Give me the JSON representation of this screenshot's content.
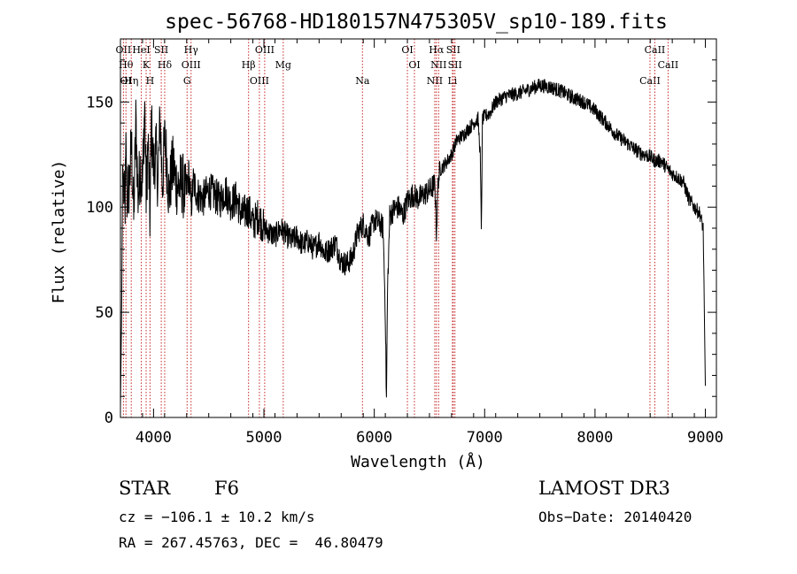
{
  "chart_data": {
    "type": "line",
    "title": "spec-56768-HD180157N475305V_sp10-189.fits",
    "xlabel": "Wavelength (Å)",
    "ylabel": "Flux (relative)",
    "xlim": [
      3700,
      9100
    ],
    "ylim": [
      0,
      180
    ],
    "xticks": [
      4000,
      5000,
      6000,
      7000,
      8000,
      9000
    ],
    "yticks": [
      0,
      50,
      100,
      150
    ],
    "grid": false,
    "series": [
      {
        "name": "flux",
        "x": [
          3700,
          3710,
          3720,
          3730,
          3740,
          3750,
          3760,
          3780,
          3800,
          3820,
          3840,
          3860,
          3880,
          3900,
          3920,
          3933,
          3950,
          3968,
          3980,
          4000,
          4020,
          4040,
          4060,
          4080,
          4101,
          4120,
          4140,
          4160,
          4180,
          4200,
          4230,
          4260,
          4290,
          4320,
          4340,
          4360,
          4400,
          4450,
          4500,
          4550,
          4600,
          4650,
          4700,
          4750,
          4800,
          4861,
          4900,
          4950,
          5000,
          5050,
          5100,
          5150,
          5200,
          5250,
          5300,
          5350,
          5400,
          5450,
          5500,
          5550,
          5600,
          5650,
          5700,
          5750,
          5800,
          5850,
          5900,
          5950,
          6000,
          6050,
          6080,
          6100,
          6110,
          6120,
          6140,
          6180,
          6220,
          6260,
          6300,
          6350,
          6400,
          6450,
          6500,
          6550,
          6563,
          6580,
          6600,
          6650,
          6700,
          6750,
          6800,
          6850,
          6900,
          6940,
          6960,
          6970,
          6980,
          7000,
          7050,
          7100,
          7200,
          7300,
          7400,
          7500,
          7600,
          7700,
          7800,
          7900,
          8000,
          8100,
          8200,
          8300,
          8400,
          8500,
          8542,
          8600,
          8662,
          8700,
          8800,
          8850,
          8900,
          8950,
          8980,
          9000
        ],
        "values": [
          5,
          45,
          120,
          108,
          95,
          125,
          105,
          110,
          130,
          95,
          140,
          105,
          120,
          112,
          150,
          105,
          130,
          95,
          140,
          118,
          128,
          112,
          142,
          110,
          132,
          122,
          105,
          115,
          120,
          112,
          110,
          112,
          105,
          116,
          100,
          112,
          106,
          104,
          108,
          106,
          103,
          108,
          102,
          104,
          96,
          99,
          92,
          96,
          90,
          88,
          86,
          90,
          87,
          84,
          86,
          82,
          84,
          80,
          84,
          78,
          80,
          83,
          74,
          73,
          76,
          88,
          92,
          86,
          94,
          92,
          90,
          50,
          8,
          60,
          96,
          99,
          100,
          96,
          103,
          106,
          104,
          106,
          108,
          111,
          88,
          114,
          118,
          121,
          125,
          132,
          134,
          137,
          140,
          142,
          125,
          90,
          142,
          143,
          145,
          150,
          153,
          154,
          156,
          158,
          157,
          155,
          152,
          150,
          146,
          140,
          134,
          130,
          126,
          124,
          122,
          122,
          118,
          116,
          112,
          104,
          100,
          97,
          90,
          15
        ]
      }
    ],
    "line_markers": [
      {
        "w": 3727,
        "labels": [
          "OII"
        ]
      },
      {
        "w": 3750,
        "labels": [
          "Hθ",
          "OI"
        ]
      },
      {
        "w": 3798,
        "labels": [
          "Hη"
        ]
      },
      {
        "w": 3889,
        "labels": [
          "HeI"
        ]
      },
      {
        "w": 3933,
        "labels": [
          "K"
        ]
      },
      {
        "w": 3968,
        "labels": [
          "H"
        ]
      },
      {
        "w": 4070,
        "labels": [
          "SII"
        ]
      },
      {
        "w": 4101,
        "labels": [
          "Hδ"
        ]
      },
      {
        "w": 4304,
        "labels": [
          "G"
        ]
      },
      {
        "w": 4340,
        "labels": [
          "Hγ",
          "OIII"
        ]
      },
      {
        "w": 4861,
        "labels": [
          "Hβ"
        ]
      },
      {
        "w": 4959,
        "labels": [
          "OIII"
        ]
      },
      {
        "w": 5007,
        "labels": [
          "OIII"
        ]
      },
      {
        "w": 5175,
        "labels": [
          "Mg"
        ]
      },
      {
        "w": 5893,
        "labels": [
          "Na"
        ]
      },
      {
        "w": 6300,
        "labels": [
          "OI"
        ]
      },
      {
        "w": 6364,
        "labels": [
          "OI"
        ]
      },
      {
        "w": 6548,
        "labels": [
          "NII"
        ]
      },
      {
        "w": 6563,
        "labels": [
          "Hα"
        ]
      },
      {
        "w": 6583,
        "labels": [
          "NII"
        ]
      },
      {
        "w": 6708,
        "labels": [
          "Li"
        ]
      },
      {
        "w": 6716,
        "labels": [
          "SII"
        ]
      },
      {
        "w": 6731,
        "labels": [
          "SII"
        ]
      },
      {
        "w": 8498,
        "labels": [
          "CaII"
        ]
      },
      {
        "w": 8542,
        "labels": [
          "CaII"
        ]
      },
      {
        "w": 8662,
        "labels": [
          "CaII"
        ]
      }
    ]
  },
  "info": {
    "object_class": "STAR",
    "subclass": "F6",
    "survey": "LAMOST DR3",
    "redshift": "cz = −106.1 ± 10.2 km/s",
    "obs_date": "Obs−Date: 20140420",
    "coords": "RA = 267.45763, DEC =  46.80479"
  }
}
